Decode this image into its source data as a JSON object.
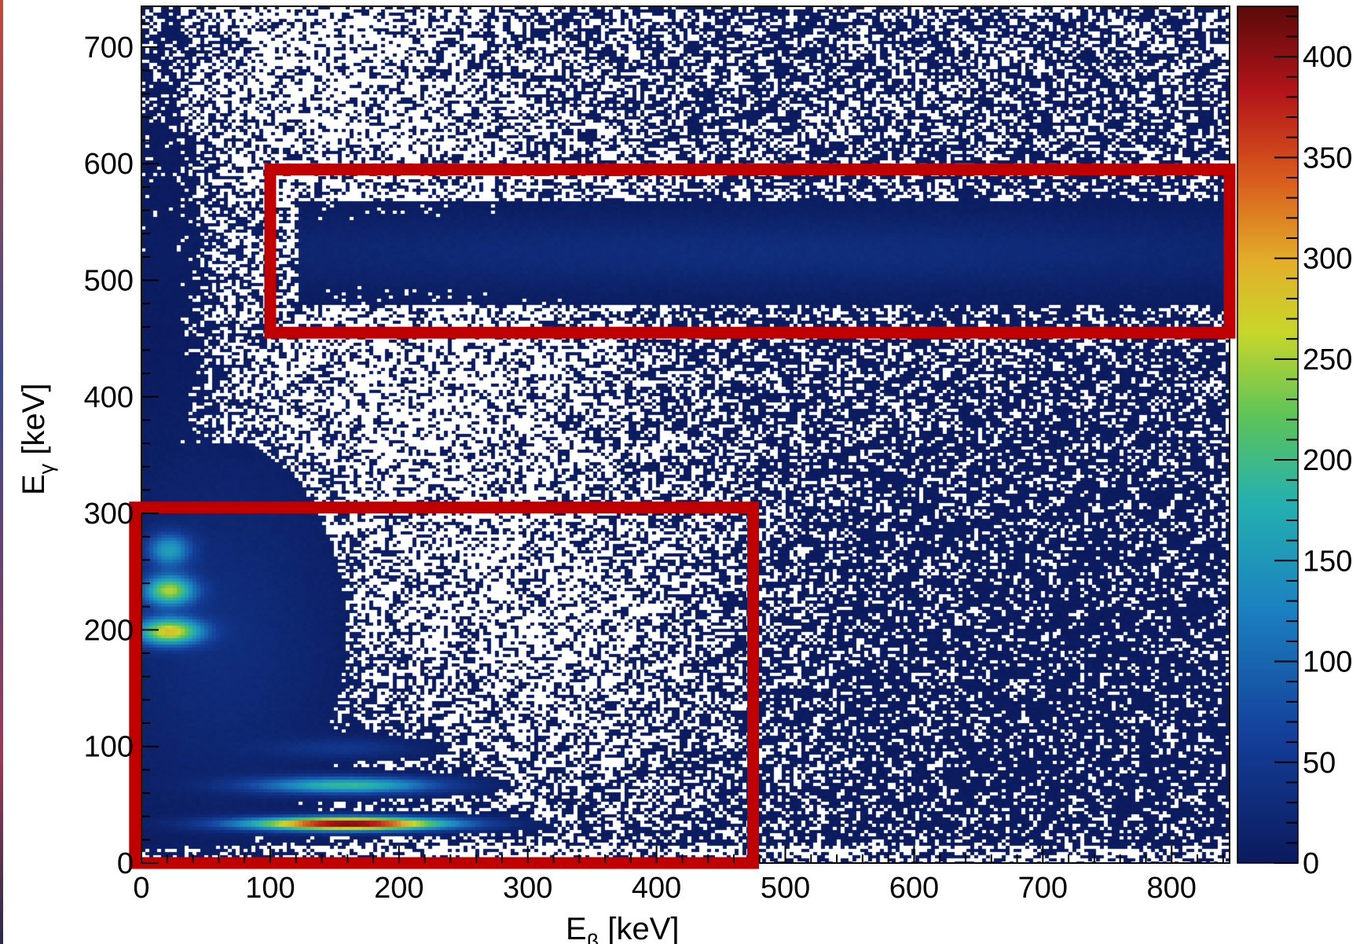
{
  "chart_data": {
    "type": "heatmap",
    "title": "",
    "xlabel": "E",
    "xlabel_sub": "β",
    "xlabel_unit": " [keV]",
    "ylabel": "E",
    "ylabel_sub": "γ",
    "ylabel_unit": " [keV]",
    "xlim": [
      0,
      845
    ],
    "ylim": [
      0,
      735
    ],
    "x_ticks": [
      0,
      100,
      200,
      300,
      400,
      500,
      600,
      700,
      800
    ],
    "y_ticks": [
      0,
      100,
      200,
      300,
      400,
      500,
      600,
      700
    ],
    "colorbar": {
      "range": [
        0,
        425
      ],
      "ticks": [
        0,
        50,
        100,
        150,
        200,
        250,
        300,
        350,
        400
      ],
      "colormap": "rainbow (dark blue → cyan → green → yellow → red → dark red)"
    },
    "features": [
      {
        "description": "horizontal gamma band",
        "x_range": [
          100,
          845
        ],
        "y_center": 525,
        "y_width": 55,
        "intensity": 30
      },
      {
        "description": "peak",
        "x": 20,
        "y": 270,
        "intensity": 140
      },
      {
        "description": "peak",
        "x": 20,
        "y": 235,
        "intensity": 230
      },
      {
        "description": "peak",
        "x": 20,
        "y": 200,
        "intensity": 260
      },
      {
        "description": "peak",
        "x": 160,
        "y": 68,
        "intensity": 190
      },
      {
        "description": "peak",
        "x": 160,
        "y": 35,
        "intensity": 420
      },
      {
        "description": "peak",
        "x": 160,
        "y": 100,
        "intensity": 40
      }
    ],
    "highlight_boxes": [
      {
        "color": "#c00000",
        "x_range": [
          100,
          845
        ],
        "y_range": [
          455,
          595
        ]
      },
      {
        "color": "#c00000",
        "x_range": [
          -5,
          475
        ],
        "y_range": [
          0,
          305
        ]
      }
    ],
    "grid": false,
    "legend": "none"
  }
}
